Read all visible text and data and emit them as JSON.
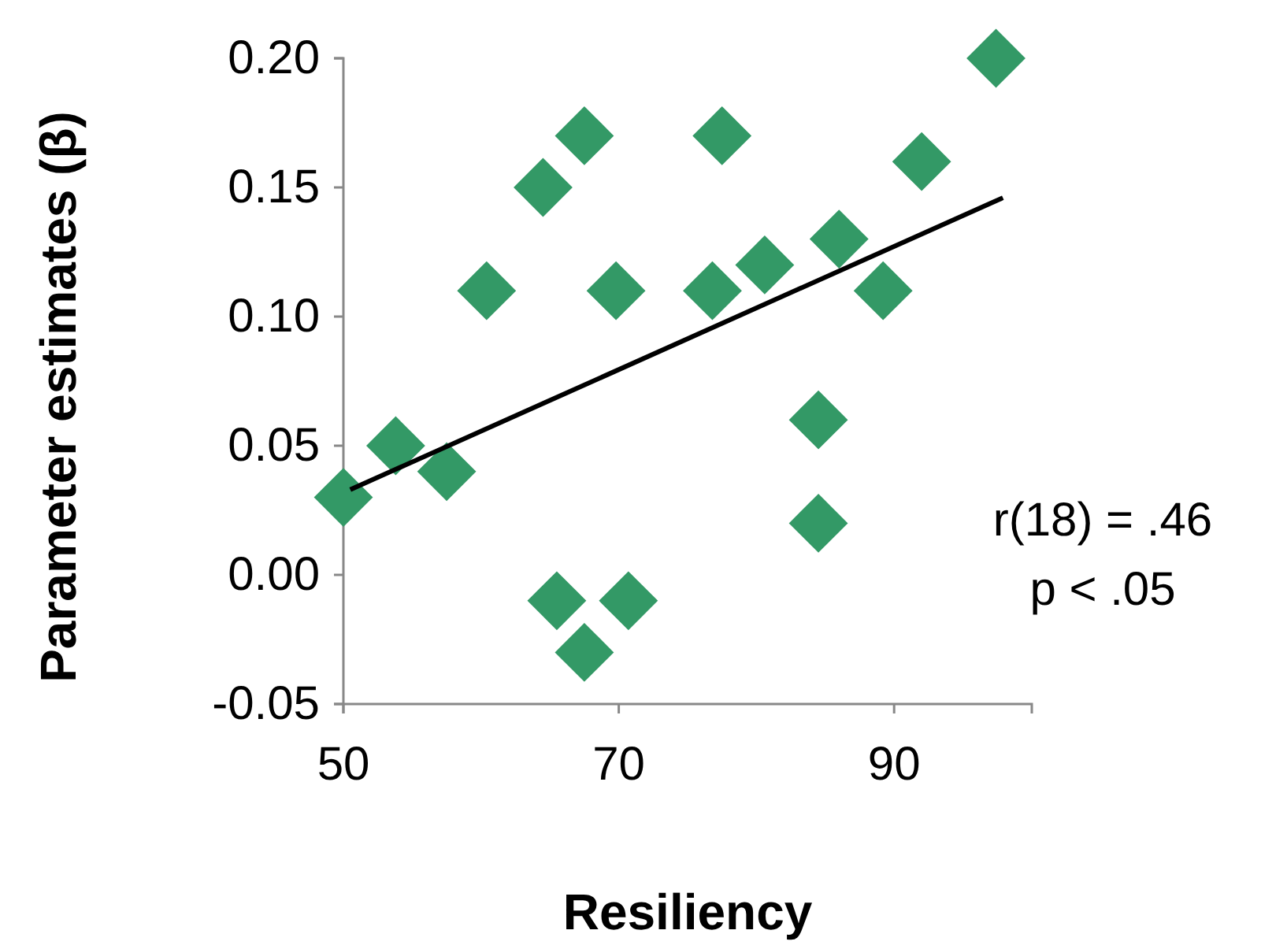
{
  "chart_data": {
    "type": "scatter",
    "xlabel": "Resiliency",
    "ylabel": "Parameter estimates (β)",
    "xlim": [
      50,
      100
    ],
    "xticks": [
      50,
      70,
      90
    ],
    "ylim": [
      -0.05,
      0.2
    ],
    "yticks": [
      -0.05,
      {
        "value": 0,
        "label": "0.00"
      },
      0.05,
      {
        "value": 0.1,
        "label": "0.10"
      },
      0.15,
      {
        "value": 0.2,
        "label": "0.20"
      }
    ],
    "annotations": [
      "r(18)  = .46",
      "p < .05"
    ],
    "series": [
      {
        "color": "#339966",
        "marker": "diamond",
        "x": [
          50,
          53.8,
          57.5,
          60.4,
          64.5,
          67.5,
          65.5,
          67.5,
          70.7,
          69.8,
          76.8,
          77.5,
          80.6,
          84.5,
          84.5,
          86,
          89.2,
          92,
          97.4
        ],
        "values": [
          0.03,
          0.05,
          0.04,
          0.11,
          0.15,
          0.17,
          -0.01,
          -0.03,
          -0.01,
          0.11,
          0.11,
          0.17,
          0.12,
          0.06,
          0.02,
          0.13,
          0.11,
          0.16,
          0.2
        ]
      },
      {
        "type": "line",
        "color": "#000000",
        "marker": "none",
        "x": [
          50.5,
          97.9
        ],
        "values": [
          0.033,
          0.146
        ]
      }
    ]
  }
}
